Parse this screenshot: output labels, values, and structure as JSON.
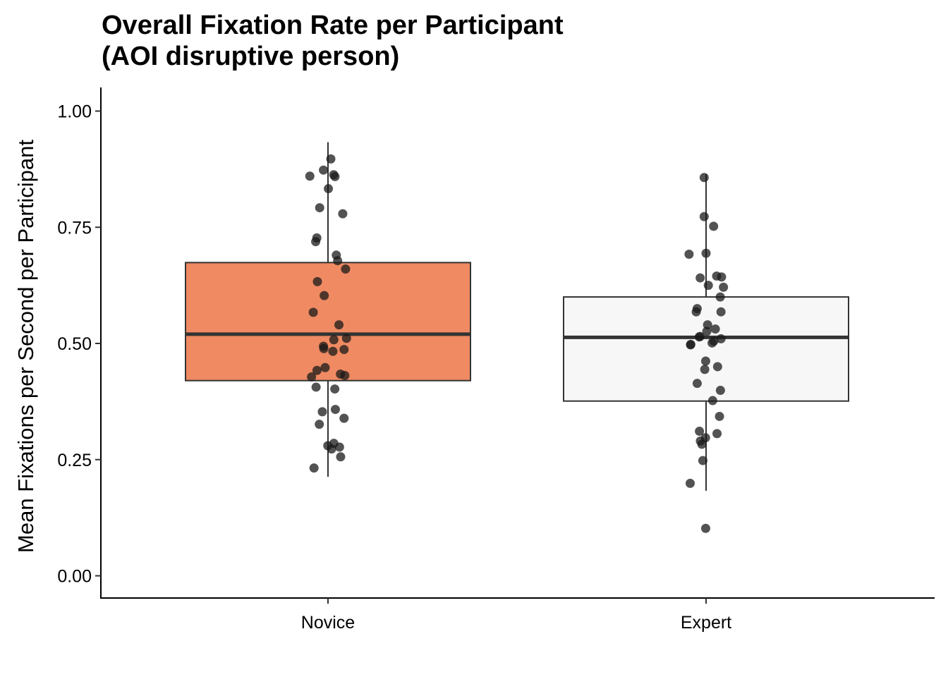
{
  "chart_data": {
    "type": "boxplot",
    "title_lines": [
      "Overall Fixation Rate per Participant",
      "(AOI disruptive person)"
    ],
    "xlabel": "",
    "ylabel": "Mean Fixations per Second per Participant",
    "ylim": [
      -0.05,
      1.05
    ],
    "yticks": [
      0.0,
      0.25,
      0.5,
      0.75,
      1.0
    ],
    "ytick_labels": [
      "0.00",
      "0.25",
      "0.50",
      "0.75",
      "1.00"
    ],
    "categories": [
      "Novice",
      "Expert"
    ],
    "grid": false,
    "legend": "none",
    "boxes": [
      {
        "category": "Novice",
        "fill": "#ef8a62",
        "whisker_low": 0.213,
        "q1": 0.42,
        "median": 0.52,
        "q3": 0.674,
        "whisker_high": 0.933
      },
      {
        "category": "Expert",
        "fill": "#f7f7f7",
        "whisker_low": 0.183,
        "q1": 0.376,
        "median": 0.513,
        "q3": 0.6,
        "whisker_high": 0.864
      }
    ],
    "points": [
      {
        "category": "Novice",
        "values": [
          0.897,
          0.873,
          0.863,
          0.86,
          0.859,
          0.833,
          0.792,
          0.779,
          0.727,
          0.719,
          0.69,
          0.678,
          0.66,
          0.633,
          0.603,
          0.567,
          0.54,
          0.511,
          0.508,
          0.494,
          0.489,
          0.487,
          0.483,
          0.448,
          0.442,
          0.434,
          0.431,
          0.428,
          0.406,
          0.402,
          0.358,
          0.353,
          0.339,
          0.326,
          0.285,
          0.28,
          0.277,
          0.273,
          0.256,
          0.232
        ],
        "jitter": [
          0.015,
          -0.024,
          0.03,
          -0.096,
          0.037,
          0.002,
          -0.044,
          0.078,
          -0.059,
          -0.065,
          0.044,
          0.051,
          0.093,
          -0.056,
          -0.02,
          -0.078,
          0.058,
          0.098,
          0.031,
          -0.024,
          -0.022,
          0.085,
          0.026,
          -0.015,
          -0.058,
          0.066,
          0.089,
          -0.087,
          -0.063,
          0.036,
          0.039,
          -0.03,
          0.085,
          -0.046,
          0.031,
          -0.001,
          0.061,
          0.019,
          0.067,
          -0.074
        ]
      },
      {
        "category": "Expert",
        "values": [
          0.857,
          0.773,
          0.752,
          0.694,
          0.692,
          0.645,
          0.643,
          0.641,
          0.625,
          0.621,
          0.6,
          0.575,
          0.568,
          0.568,
          0.54,
          0.531,
          0.526,
          0.515,
          0.514,
          0.51,
          0.505,
          0.501,
          0.498,
          0.497,
          0.462,
          0.45,
          0.444,
          0.414,
          0.399,
          0.377,
          0.343,
          0.311,
          0.306,
          0.297,
          0.29,
          0.283,
          0.248,
          0.199,
          0.102
        ],
        "jitter": [
          -0.01,
          -0.01,
          0.04,
          0.0,
          -0.09,
          0.056,
          0.082,
          -0.031,
          0.012,
          0.092,
          0.075,
          -0.047,
          0.079,
          -0.052,
          0.008,
          0.049,
          0.004,
          -0.032,
          -0.036,
          0.079,
          0.041,
          0.032,
          -0.081,
          -0.082,
          -0.002,
          0.061,
          -0.007,
          -0.047,
          0.076,
          0.035,
          0.071,
          -0.035,
          0.058,
          -0.003,
          -0.03,
          -0.022,
          -0.017,
          -0.084,
          -0.002
        ]
      }
    ],
    "point_color": "#1a1a1a",
    "median_color": "#333333"
  }
}
